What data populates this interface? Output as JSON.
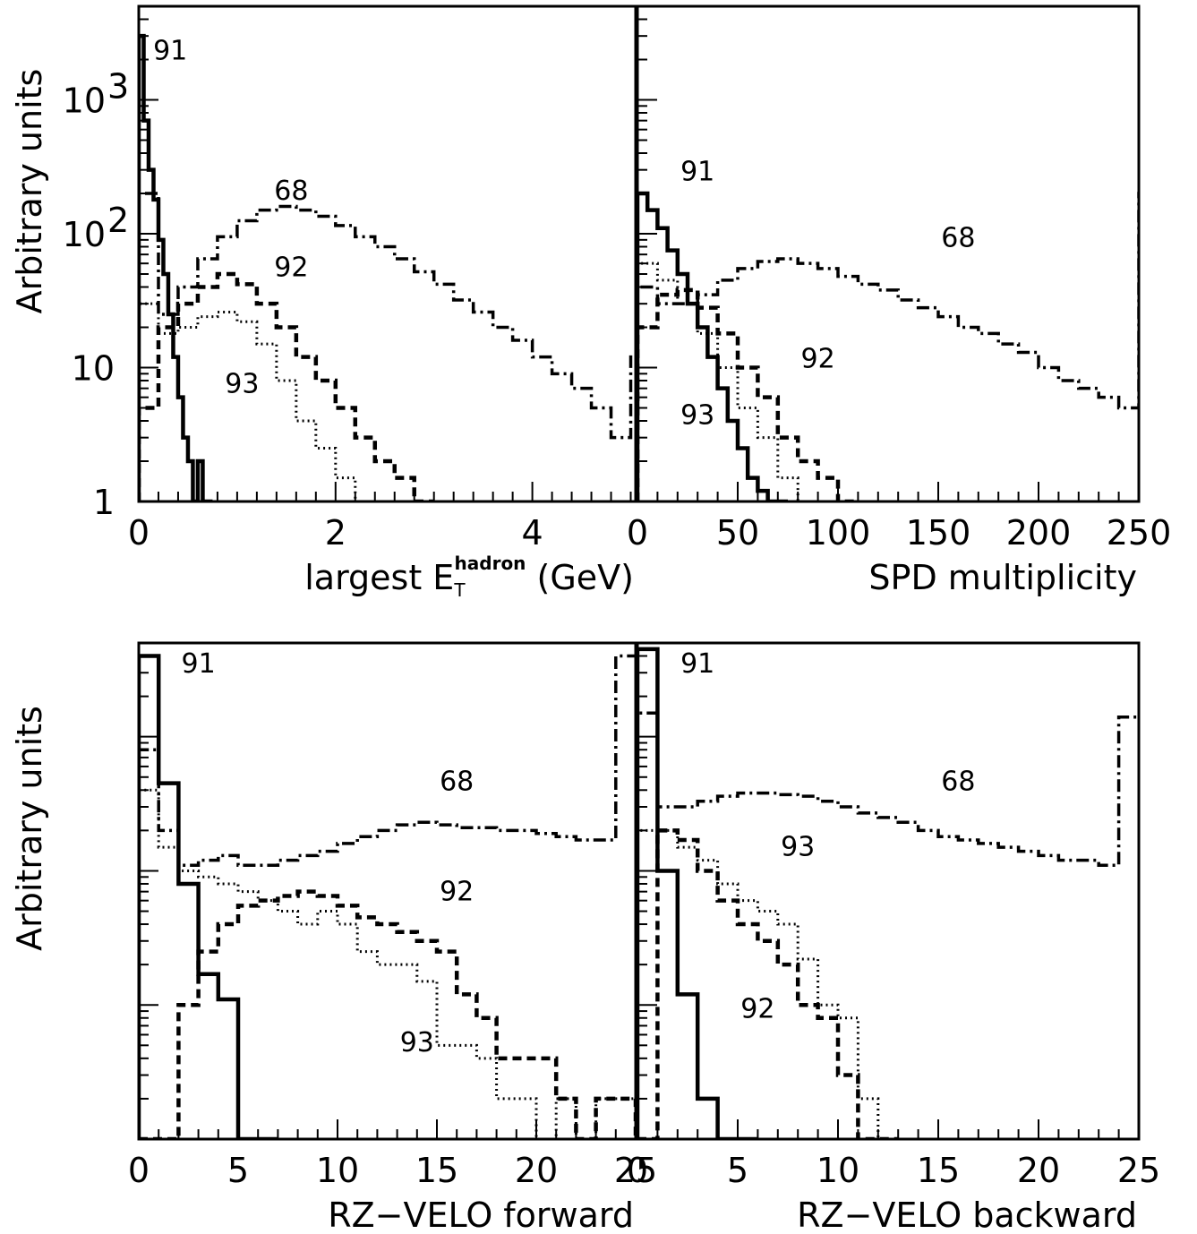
{
  "chart_data": [
    {
      "type": "line",
      "panel": "top-left",
      "xlabel": "largest E",
      "xlabel_sub": "T",
      "xlabel_sup": "hadron",
      "xlabel_unit": "(GeV)",
      "ylabel": "Arbitrary units",
      "log_y": true,
      "xlim": [
        0,
        5.05
      ],
      "ylim": [
        1,
        5000
      ],
      "x_ticks": [
        "0",
        "2",
        "4"
      ],
      "x_tick_values": [
        0,
        2,
        4
      ],
      "y_ticks": [
        {
          "label": "1",
          "value": 1
        },
        {
          "label": "10",
          "value": 10
        },
        {
          "label": "10",
          "sup": "2",
          "value": 100
        },
        {
          "label": "10",
          "sup": "3",
          "value": 1000
        }
      ],
      "series": [
        {
          "label": "91",
          "style": "solid",
          "x": [
            0,
            0.05,
            0.1,
            0.15,
            0.2,
            0.25,
            0.3,
            0.35,
            0.4,
            0.45,
            0.5,
            0.55,
            0.6,
            0.65,
            0.7
          ],
          "y": [
            3000,
            700,
            300,
            180,
            90,
            50,
            25,
            12,
            6,
            3,
            2,
            1,
            2,
            1,
            1
          ]
        },
        {
          "label": "68",
          "style": "dashdot",
          "x": [
            0,
            0.2,
            0.4,
            0.6,
            0.8,
            1.0,
            1.2,
            1.4,
            1.6,
            1.8,
            2.0,
            2.2,
            2.4,
            2.6,
            2.8,
            3.0,
            3.2,
            3.4,
            3.6,
            3.8,
            4.0,
            4.2,
            4.4,
            4.6,
            4.8,
            5.0
          ],
          "y": [
            200,
            25,
            40,
            65,
            95,
            125,
            150,
            160,
            150,
            135,
            115,
            95,
            80,
            65,
            52,
            42,
            32,
            26,
            20,
            16,
            12,
            9,
            7,
            5,
            3,
            12
          ]
        },
        {
          "label": "92",
          "style": "dashed",
          "x": [
            0,
            0.2,
            0.4,
            0.6,
            0.8,
            1.0,
            1.2,
            1.4,
            1.6,
            1.8,
            2.0,
            2.2,
            2.4,
            2.6,
            2.8
          ],
          "y": [
            5,
            20,
            30,
            40,
            50,
            42,
            30,
            20,
            12,
            8,
            5,
            3,
            2,
            1.5,
            1
          ]
        },
        {
          "label": "93",
          "style": "dotted",
          "x": [
            0,
            0.2,
            0.4,
            0.6,
            0.8,
            1.0,
            1.2,
            1.4,
            1.6,
            1.8,
            2.0,
            2.2
          ],
          "y": [
            30,
            18,
            20,
            24,
            26,
            22,
            15,
            8,
            4,
            2.5,
            1.5,
            1
          ]
        }
      ],
      "annotations": [
        {
          "text": "91",
          "x": 0.32,
          "y": 2000
        },
        {
          "text": "68",
          "x": 1.55,
          "y": 180
        },
        {
          "text": "92",
          "x": 1.55,
          "y": 48
        },
        {
          "text": "93",
          "x": 1.05,
          "y": 6.5
        }
      ]
    },
    {
      "type": "line",
      "panel": "top-right",
      "xlabel": "SPD multiplicity",
      "log_y": true,
      "xlim": [
        0,
        250
      ],
      "ylim": [
        1,
        5000
      ],
      "x_ticks": [
        "0",
        "50",
        "100",
        "150",
        "200",
        "250"
      ],
      "x_tick_values": [
        0,
        50,
        100,
        150,
        200,
        250
      ],
      "series": [
        {
          "label": "91",
          "style": "solid",
          "x": [
            0,
            5,
            10,
            15,
            20,
            25,
            30,
            35,
            40,
            45,
            50,
            55,
            60,
            65,
            70
          ],
          "y": [
            200,
            150,
            110,
            75,
            50,
            30,
            20,
            12,
            7,
            4,
            2.5,
            1.5,
            1.2,
            1,
            1
          ]
        },
        {
          "label": "68",
          "style": "dashdot",
          "x": [
            0,
            10,
            20,
            30,
            40,
            50,
            60,
            70,
            80,
            90,
            100,
            110,
            120,
            130,
            140,
            150,
            160,
            170,
            180,
            190,
            200,
            210,
            220,
            230,
            240,
            250
          ],
          "y": [
            40,
            30,
            30,
            35,
            45,
            55,
            62,
            65,
            60,
            55,
            48,
            42,
            38,
            32,
            28,
            24,
            20,
            18,
            15,
            13,
            10,
            8,
            7,
            6,
            5,
            200
          ]
        },
        {
          "label": "92",
          "style": "dashed",
          "x": [
            0,
            10,
            20,
            30,
            40,
            50,
            60,
            70,
            80,
            90,
            100
          ],
          "y": [
            20,
            35,
            38,
            28,
            18,
            10,
            6,
            3,
            2,
            1.5,
            1
          ]
        },
        {
          "label": "93",
          "style": "dotted",
          "x": [
            0,
            10,
            20,
            30,
            40,
            50,
            60,
            70,
            80
          ],
          "y": [
            60,
            45,
            30,
            18,
            10,
            5,
            3,
            1.5,
            1
          ]
        }
      ],
      "annotations": [
        {
          "text": "91",
          "x": 30,
          "y": 250
        },
        {
          "text": "68",
          "x": 160,
          "y": 80
        },
        {
          "text": "92",
          "x": 90,
          "y": 10
        },
        {
          "text": "93",
          "x": 30,
          "y": 3.8
        }
      ]
    },
    {
      "type": "line",
      "panel": "bottom-left",
      "xlabel": "RZ−VELO forward",
      "ylabel": "Arbitrary units",
      "log_y": true,
      "xlim": [
        0,
        25
      ],
      "ylim": [
        1,
        5000
      ],
      "x_ticks": [
        "0",
        "5",
        "10",
        "15",
        "20",
        "25"
      ],
      "x_tick_values": [
        0,
        5,
        10,
        15,
        20,
        25
      ],
      "series": [
        {
          "label": "91",
          "style": "solid",
          "x": [
            0,
            1,
            2,
            3,
            4,
            5,
            6
          ],
          "y": [
            4000,
            450,
            80,
            17,
            11,
            1,
            1
          ]
        },
        {
          "label": "68",
          "style": "dashdot",
          "x": [
            0,
            1,
            2,
            3,
            4,
            5,
            6,
            7,
            8,
            9,
            10,
            11,
            12,
            13,
            14,
            15,
            16,
            17,
            18,
            19,
            20,
            21,
            22,
            23,
            24,
            25
          ],
          "y": [
            800,
            200,
            110,
            120,
            130,
            110,
            110,
            120,
            130,
            140,
            160,
            180,
            200,
            220,
            230,
            220,
            210,
            210,
            200,
            200,
            190,
            180,
            170,
            170,
            4000,
            4000
          ]
        },
        {
          "label": "92",
          "style": "dashed",
          "x": [
            0,
            1,
            2,
            3,
            4,
            5,
            6,
            7,
            8,
            9,
            10,
            11,
            12,
            13,
            14,
            15,
            16,
            17,
            18,
            19,
            20,
            21,
            22,
            23,
            24,
            25
          ],
          "y": [
            1,
            1,
            10,
            25,
            40,
            55,
            60,
            65,
            70,
            65,
            55,
            45,
            40,
            35,
            30,
            25,
            12,
            8,
            4,
            4,
            4,
            2,
            1,
            2,
            2,
            1
          ]
        },
        {
          "label": "93",
          "style": "dotted",
          "x": [
            0,
            1,
            2,
            3,
            4,
            5,
            6,
            7,
            8,
            9,
            10,
            11,
            12,
            13,
            14,
            15,
            16,
            17,
            18,
            19,
            20,
            21,
            22,
            23,
            24,
            25
          ],
          "y": [
            400,
            150,
            100,
            90,
            80,
            70,
            60,
            50,
            40,
            50,
            40,
            25,
            20,
            20,
            15,
            5,
            5,
            4,
            2,
            2,
            1,
            2,
            1,
            2,
            2,
            1
          ]
        }
      ],
      "annotations": [
        {
          "text": "91",
          "x": 3,
          "y": 3000
        },
        {
          "text": "68",
          "x": 16,
          "y": 400
        },
        {
          "text": "92",
          "x": 16,
          "y": 60
        },
        {
          "text": "93",
          "x": 14,
          "y": 4.5
        }
      ]
    },
    {
      "type": "line",
      "panel": "bottom-right",
      "xlabel": "RZ−VELO backward",
      "log_y": true,
      "xlim": [
        0,
        25
      ],
      "ylim": [
        1,
        5000
      ],
      "x_ticks": [
        "0",
        "5",
        "10",
        "15",
        "20",
        "25"
      ],
      "x_tick_values": [
        0,
        5,
        10,
        15,
        20,
        25
      ],
      "series": [
        {
          "label": "91",
          "style": "solid",
          "x": [
            0,
            1,
            2,
            3,
            4,
            5
          ],
          "y": [
            4500,
            100,
            12,
            2,
            1,
            1
          ]
        },
        {
          "label": "68",
          "style": "dashdot",
          "x": [
            0,
            1,
            2,
            3,
            4,
            5,
            6,
            7,
            8,
            9,
            10,
            11,
            12,
            13,
            14,
            15,
            16,
            17,
            18,
            19,
            20,
            21,
            22,
            23,
            24,
            25
          ],
          "y": [
            1500,
            300,
            300,
            330,
            360,
            380,
            380,
            370,
            360,
            330,
            300,
            270,
            250,
            230,
            200,
            180,
            170,
            160,
            150,
            140,
            130,
            120,
            120,
            110,
            1400,
            1400
          ]
        },
        {
          "label": "92",
          "style": "dashed",
          "x": [
            0,
            1,
            2,
            3,
            4,
            5,
            6,
            7,
            8,
            9,
            10,
            11,
            12
          ],
          "y": [
            1,
            200,
            170,
            100,
            60,
            40,
            30,
            20,
            10,
            8,
            3,
            1,
            1
          ]
        },
        {
          "label": "93",
          "style": "dotted",
          "x": [
            0,
            1,
            2,
            3,
            4,
            5,
            6,
            7,
            8,
            9,
            10,
            11,
            12
          ],
          "y": [
            200,
            200,
            150,
            120,
            80,
            60,
            50,
            40,
            22,
            10,
            8,
            2,
            1
          ]
        }
      ],
      "annotations": [
        {
          "text": "91",
          "x": 3,
          "y": 3000
        },
        {
          "text": "68",
          "x": 16,
          "y": 400
        },
        {
          "text": "93",
          "x": 8,
          "y": 130
        },
        {
          "text": "92",
          "x": 6,
          "y": 8
        }
      ]
    }
  ]
}
